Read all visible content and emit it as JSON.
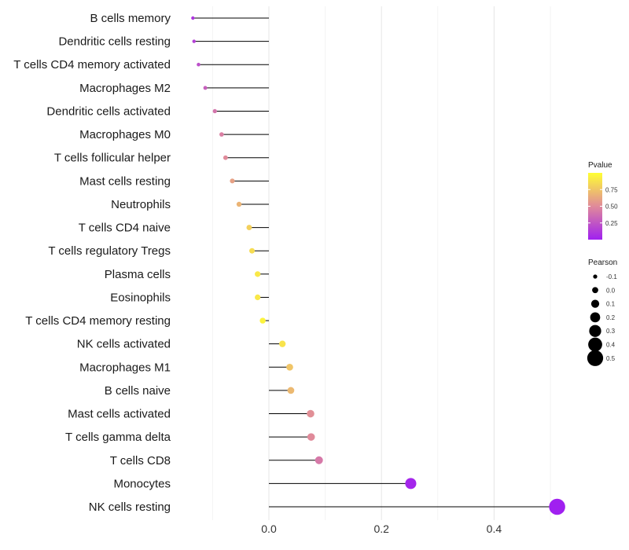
{
  "chart_data": {
    "type": "lollipop",
    "title": "",
    "xlabel": "",
    "ylabel": "",
    "xlim": [
      -0.14,
      0.52
    ],
    "x_ticks": [
      0.0,
      0.2,
      0.4
    ],
    "x_tick_labels": [
      "0.0",
      "0.2",
      "0.4"
    ],
    "grid": true,
    "categories": [
      "B cells memory",
      "Dendritic cells resting",
      "T cells CD4 memory activated",
      "Macrophages M2",
      "Dendritic cells activated",
      "Macrophages M0",
      "T cells follicular helper",
      "Mast cells resting",
      "Neutrophils",
      "T cells CD4 naive",
      "T cells regulatory  Tregs",
      "Plasma cells",
      "Eosinophils",
      "T cells CD4 memory resting",
      "NK cells activated",
      "Macrophages M1",
      "B cells naive",
      "Mast cells activated",
      "T cells gamma delta",
      "T cells CD8",
      "Monocytes",
      "NK cells resting"
    ],
    "pearson": [
      -0.135,
      -0.133,
      -0.125,
      -0.113,
      -0.096,
      -0.084,
      -0.077,
      -0.065,
      -0.053,
      -0.035,
      -0.03,
      -0.02,
      -0.02,
      -0.011,
      0.024,
      0.037,
      0.039,
      0.074,
      0.075,
      0.089,
      0.252,
      0.512
    ],
    "pvalue": [
      0.1,
      0.15,
      0.22,
      0.3,
      0.4,
      0.45,
      0.5,
      0.6,
      0.68,
      0.8,
      0.85,
      0.9,
      0.9,
      0.95,
      0.88,
      0.75,
      0.7,
      0.52,
      0.5,
      0.42,
      0.03,
      0.0001
    ],
    "color_legend": {
      "title": "Pvalue",
      "ticks": [
        0.25,
        0.5,
        0.75
      ],
      "tick_labels": [
        "0.25",
        "0.50",
        "0.75"
      ],
      "low_color": "#a020f0",
      "mid_color": "#e08a9a",
      "high_color": "#ffff33"
    },
    "size_legend": {
      "title": "Pearson",
      "values": [
        -0.1,
        0.0,
        0.1,
        0.2,
        0.3,
        0.4,
        0.5
      ],
      "labels": [
        "-0.1",
        "0.0",
        "0.1",
        "0.2",
        "0.3",
        "0.4",
        "0.5"
      ]
    }
  }
}
